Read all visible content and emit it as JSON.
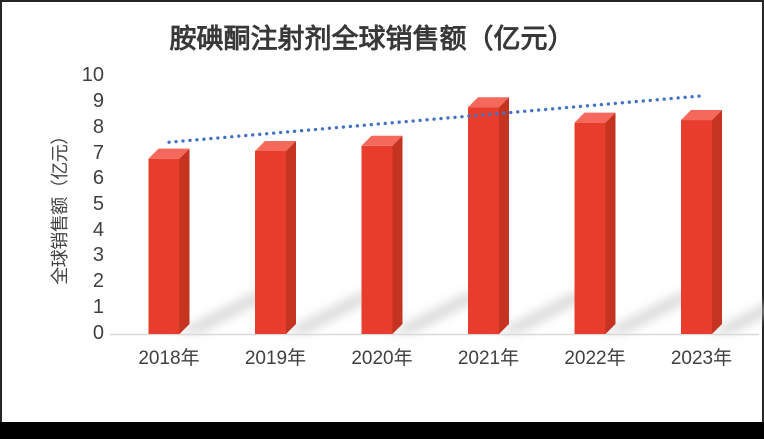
{
  "chart_data": {
    "type": "bar",
    "title": "胺碘酮注射剂全球销售额（亿元）",
    "ylabel": "全球销售额（亿元）",
    "xlabel": "",
    "categories": [
      "2018年",
      "2019年",
      "2020年",
      "2021年",
      "2022年",
      "2023年"
    ],
    "values": [
      7.2,
      7.5,
      7.7,
      9.2,
      8.6,
      8.7
    ],
    "ylim": [
      0,
      10
    ],
    "yticks": [
      0,
      1,
      2,
      3,
      4,
      5,
      6,
      7,
      8,
      9,
      10
    ],
    "grid": false,
    "legend": "none",
    "bar_style": "3d-column-with-diagonal-shadow",
    "trendline": {
      "type": "linear",
      "style": "dotted",
      "start_value": 7.4,
      "end_value": 9.2
    }
  },
  "colors": {
    "bar_front": "#E83C2C",
    "bar_top": "#F4695B",
    "bar_side": "#C53321",
    "trendline": "#4472C4",
    "axis_line": "#D9D9D9",
    "shadow": "#BDBDBD",
    "title_text": "#383838",
    "axis_text": "#404040",
    "frame_border": "#262626",
    "bottom_bar": "#000000",
    "background": "#FFFFFF"
  }
}
